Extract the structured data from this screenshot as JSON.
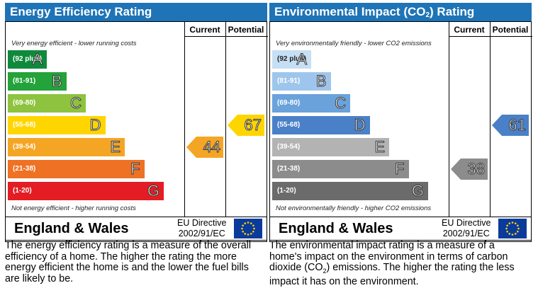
{
  "chart_data": [
    {
      "type": "bar",
      "title": "Energy Efficiency Rating",
      "columns": [
        "Current",
        "Potential"
      ],
      "top_note": "Very energy efficient - lower running costs",
      "bottom_note": "Not energy efficient - higher running costs",
      "bands": [
        {
          "range": "(92 plus)",
          "letter": "A",
          "color": "#0f8a3c"
        },
        {
          "range": "(81-91)",
          "letter": "B",
          "color": "#23a33a"
        },
        {
          "range": "(69-80)",
          "letter": "C",
          "color": "#8dc33e"
        },
        {
          "range": "(55-68)",
          "letter": "D",
          "color": "#ffd500"
        },
        {
          "range": "(39-54)",
          "letter": "E",
          "color": "#f5a524"
        },
        {
          "range": "(21-38)",
          "letter": "F",
          "color": "#ef7124"
        },
        {
          "range": "(1-20)",
          "letter": "G",
          "color": "#e31d23"
        }
      ],
      "current": {
        "value": 44,
        "band": "E",
        "color": "#f5a524"
      },
      "potential": {
        "value": 67,
        "band": "D",
        "color": "#ffd500"
      },
      "country": "England & Wales",
      "directive": [
        "EU Directive",
        "2002/91/EC"
      ],
      "description": "The energy efficiency rating is a measure of the overall efficiency of a home. The higher the rating the more energy efficient the home is and the lower the fuel bills are likely to be."
    },
    {
      "type": "bar",
      "title_main": "Environmental Impact (CO",
      "title_sub": "2",
      "title_end": ") Rating",
      "columns": [
        "Current",
        "Potential"
      ],
      "top_note": "Very environmentally friendly - lower CO2 emissions",
      "bottom_note": "Not environmentally friendly - higher CO2 emissions",
      "bands": [
        {
          "range": "(92 plus)",
          "letter": "A",
          "color": "#c6dff4"
        },
        {
          "range": "(81-91)",
          "letter": "B",
          "color": "#9ec6ec"
        },
        {
          "range": "(69-80)",
          "letter": "C",
          "color": "#6aa2dc"
        },
        {
          "range": "(55-68)",
          "letter": "D",
          "color": "#4a80c8"
        },
        {
          "range": "(39-54)",
          "letter": "E",
          "color": "#b3b3b3"
        },
        {
          "range": "(21-38)",
          "letter": "F",
          "color": "#8c8c8c"
        },
        {
          "range": "(1-20)",
          "letter": "G",
          "color": "#6b6b6b"
        }
      ],
      "current": {
        "value": 38,
        "band": "F",
        "color": "#8c8c8c"
      },
      "potential": {
        "value": 61,
        "band": "D",
        "color": "#4a80c8"
      },
      "country": "England & Wales",
      "directive": [
        "EU Directive",
        "2002/91/EC"
      ],
      "description_parts": [
        "The environmental impact rating is a measure of a home's impact on the environment in terms of carbon dioxide (CO",
        "2",
        ") emissions. The higher the rating the less impact it has on the environment."
      ]
    }
  ]
}
